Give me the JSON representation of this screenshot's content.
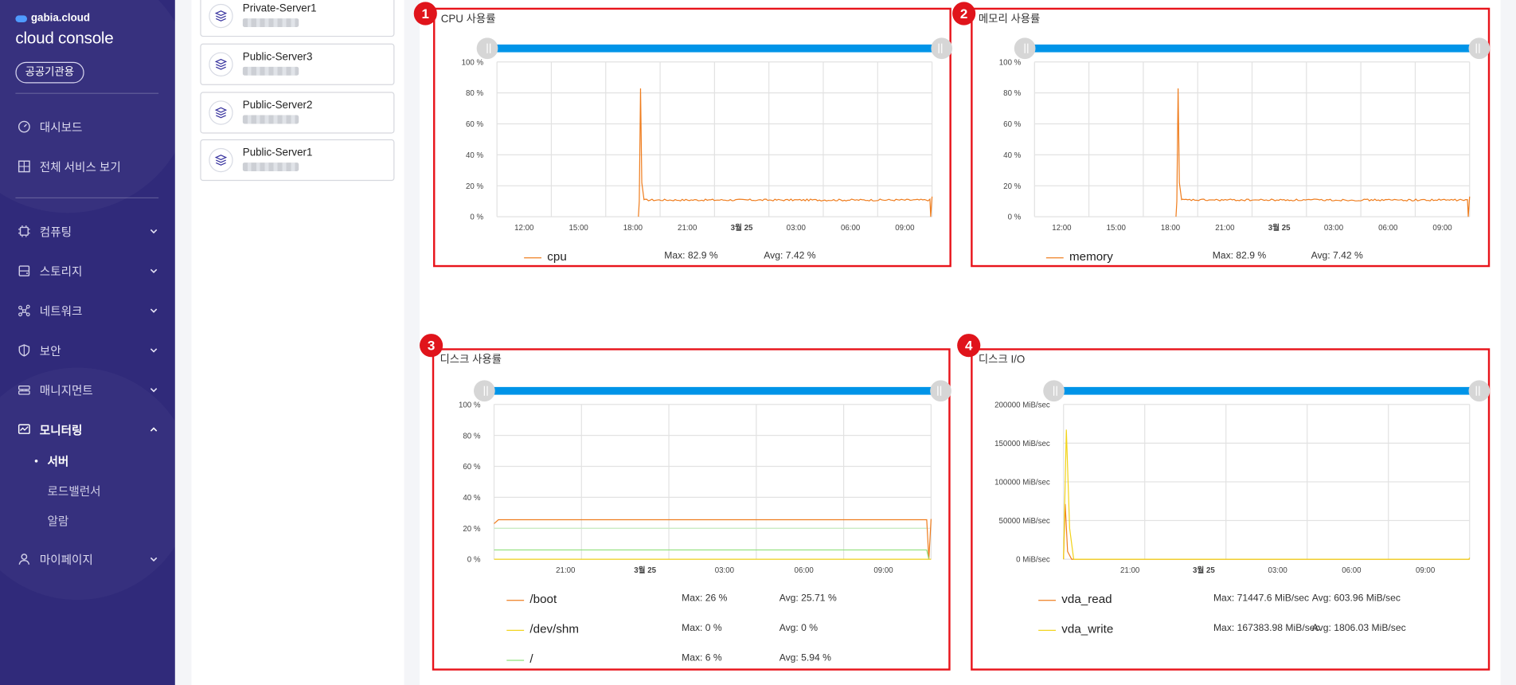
{
  "sidebar": {
    "brand": "gabia.cloud",
    "console_title": "cloud console",
    "gov_badge": "공공기관용",
    "menu": [
      {
        "label": "대시보드"
      },
      {
        "label": "전체 서비스 보기"
      },
      {
        "label": "컴퓨팅"
      },
      {
        "label": "스토리지"
      },
      {
        "label": "네트워크"
      },
      {
        "label": "보안"
      },
      {
        "label": "매니지먼트"
      },
      {
        "label": "모니터링"
      },
      {
        "label": "마이페이지"
      }
    ],
    "monitoring_sub": [
      {
        "label": "서버"
      },
      {
        "label": "로드밸런서"
      },
      {
        "label": "알람"
      }
    ]
  },
  "servers": [
    {
      "name": "Private-Server1"
    },
    {
      "name": "Public-Server3"
    },
    {
      "name": "Public-Server2"
    },
    {
      "name": "Public-Server1"
    }
  ],
  "colors": {
    "sidebar_bg": "#302a7a",
    "highlight_red": "#e8141b",
    "slider_blue": "#0094e8",
    "series_orange": "#ef7d1e",
    "series_yellow": "#f2d31a",
    "series_green": "#8ee07a"
  },
  "charts": [
    {
      "badge": "1",
      "title": "CPU 사용률",
      "chart_data": {
        "type": "line",
        "title": "CPU 사용률",
        "y_ticks": [
          "100 %",
          "80 %",
          "60 %",
          "40 %",
          "20 %",
          "0 %"
        ],
        "x_ticks": [
          "12:00",
          "15:00",
          "18:00",
          "21:00",
          "3월 25",
          "03:00",
          "06:00",
          "09:00"
        ],
        "ylim": [
          0,
          100
        ],
        "series": [
          {
            "name": "cpu",
            "color": "#ef7d1e",
            "max": "Max: 82.9 %",
            "avg": "Avg: 7.42 %"
          }
        ]
      }
    },
    {
      "badge": "2",
      "title": "메모리 사용률",
      "chart_data": {
        "type": "line",
        "title": "메모리 사용률",
        "y_ticks": [
          "100 %",
          "80 %",
          "60 %",
          "40 %",
          "20 %",
          "0 %"
        ],
        "x_ticks": [
          "12:00",
          "15:00",
          "18:00",
          "21:00",
          "3월 25",
          "03:00",
          "06:00",
          "09:00"
        ],
        "ylim": [
          0,
          100
        ],
        "series": [
          {
            "name": "memory",
            "color": "#ef7d1e",
            "max": "Max: 82.9 %",
            "avg": "Avg: 7.42 %"
          }
        ]
      }
    },
    {
      "badge": "3",
      "title": "디스크 사용률",
      "chart_data": {
        "type": "line",
        "title": "디스크 사용률",
        "y_ticks": [
          "100 %",
          "80 %",
          "60 %",
          "40 %",
          "20 %",
          "0 %"
        ],
        "x_ticks": [
          "21:00",
          "3월 25",
          "03:00",
          "06:00",
          "09:00"
        ],
        "ylim": [
          0,
          100
        ],
        "series": [
          {
            "name": "/boot",
            "color": "#ef7d1e",
            "max": "Max: 26 %",
            "avg": "Avg: 25.71 %"
          },
          {
            "name": "/dev/shm",
            "color": "#f2d31a",
            "max": "Max: 0 %",
            "avg": "Avg: 0 %"
          },
          {
            "name": "/",
            "color": "#8ee07a",
            "max": "Max: 6 %",
            "avg": "Avg: 5.94 %"
          }
        ]
      }
    },
    {
      "badge": "4",
      "title": "디스크 I/O",
      "chart_data": {
        "type": "line",
        "title": "디스크 I/O",
        "y_ticks": [
          "200000 MiB/sec",
          "150000 MiB/sec",
          "100000 MiB/sec",
          "50000 MiB/sec",
          "0 MiB/sec"
        ],
        "x_ticks": [
          "21:00",
          "3월 25",
          "03:00",
          "06:00",
          "09:00"
        ],
        "ylim": [
          0,
          200000
        ],
        "series": [
          {
            "name": "vda_read",
            "color": "#ef7d1e",
            "max": "Max: 71447.6 MiB/sec",
            "avg": "Avg: 603.96 MiB/sec"
          },
          {
            "name": "vda_write",
            "color": "#f2d31a",
            "max": "Max: 167383.98 MiB/sec",
            "avg": "Avg: 1806.03 MiB/sec"
          }
        ]
      }
    }
  ]
}
